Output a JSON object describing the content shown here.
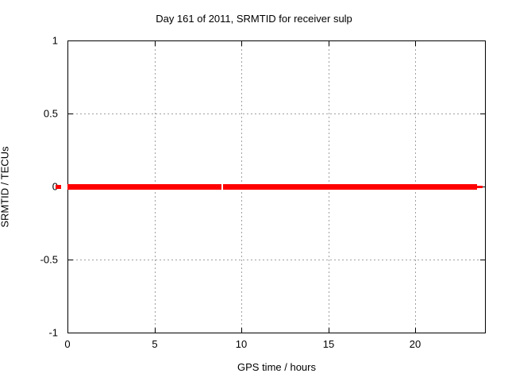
{
  "page": {
    "background": "#ffffff",
    "text_color": "#000000"
  },
  "chart_data": {
    "type": "line",
    "title": "Day 161 of 2011, SRMTID for receiver sulp",
    "xlabel": "GPS time / hours",
    "ylabel": "SRMTID / TECUs",
    "xlim": [
      0,
      24
    ],
    "ylim": [
      -1,
      1
    ],
    "xticks": [
      0,
      5,
      10,
      15,
      20
    ],
    "xtick_labels": [
      "0",
      "5",
      "10",
      "15",
      "20"
    ],
    "yticks": [
      1,
      0.5,
      0,
      -0.5,
      -1
    ],
    "ytick_labels": [
      "1",
      "0.5",
      "0",
      "-0.5",
      "-1"
    ],
    "grid": true,
    "grid_color": "#a0a0a0",
    "border_color": "#000000",
    "line_color": "#ff0000",
    "legend": "none",
    "series": [
      {
        "name": "SRMTID",
        "constant_y": 0,
        "segments": [
          {
            "x0": 0,
            "x1": 8.85,
            "weight": "thick"
          },
          {
            "x0": 8.95,
            "x1": 23.55,
            "weight": "thick"
          },
          {
            "x0": 23.55,
            "x1": 23.87,
            "weight": "thin"
          }
        ]
      }
    ],
    "annotations": [
      {
        "name": "red-dash-outside-left-axis",
        "y": 0,
        "side": "left",
        "color": "#ff0000"
      }
    ]
  }
}
